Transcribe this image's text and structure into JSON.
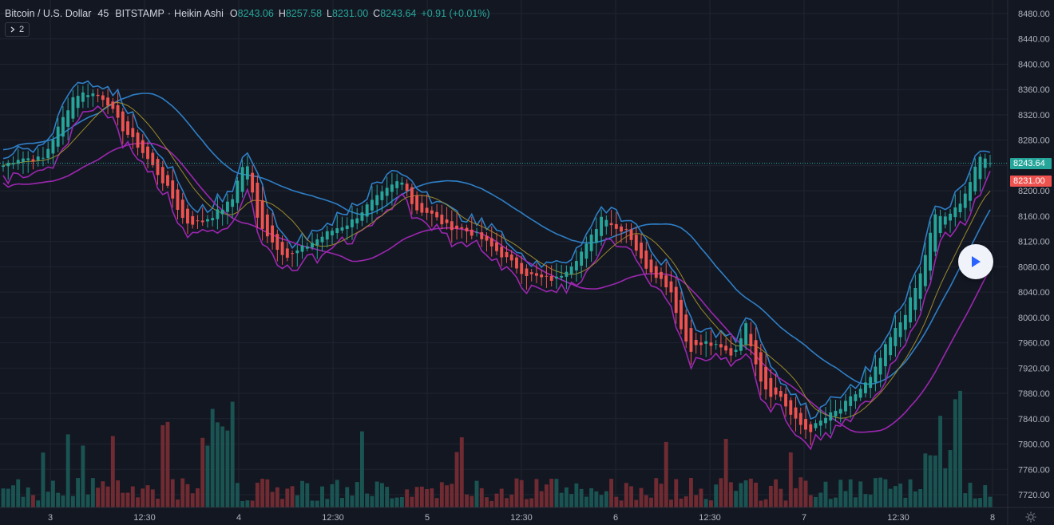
{
  "legend": {
    "symbol": "Bitcoin / U.S. Dollar",
    "interval": "45",
    "exchange": "BITSTAMP",
    "chart_style": "Heikin Ashi",
    "open_label": "O",
    "open_value": "8243.06",
    "high_label": "H",
    "high_value": "8257.58",
    "low_label": "L",
    "low_value": "8231.00",
    "close_label": "C",
    "close_value": "8243.64",
    "change": "+0.91 (+0.01%)"
  },
  "indicators_toggle": {
    "count": "2",
    "icon": "chevron-right-icon"
  },
  "price_axis": {
    "labels": [
      "8480.00",
      "8440.00",
      "8400.00",
      "8360.00",
      "8320.00",
      "8280.00",
      "8240.00",
      "8200.00",
      "8160.00",
      "8120.00",
      "8080.00",
      "8040.00",
      "8000.00",
      "7960.00",
      "7920.00",
      "7880.00",
      "7840.00",
      "7800.00",
      "7760.00",
      "7720.00"
    ]
  },
  "price_tags": {
    "last": "8243.64",
    "low": "8231.00"
  },
  "time_axis": {
    "labels": [
      "3",
      "12:30",
      "4",
      "12:30",
      "5",
      "12:30",
      "6",
      "12:30",
      "7",
      "12:30",
      "8"
    ]
  },
  "play_button": {
    "icon": "play-icon"
  },
  "settings": {
    "icon": "gear-icon"
  },
  "colors": {
    "background": "#131722",
    "grid": "#1f2430",
    "up": "#26a69a",
    "down": "#ef5350",
    "upper_band": "#2e7fc6",
    "lower_band": "#9c27b0",
    "middle_line": "#9c8a2a",
    "price_line": "#26a69a"
  },
  "chart_data": {
    "type": "candlestick",
    "y_range": [
      7700,
      8490
    ],
    "bars": 199,
    "x_ticks": [
      "3",
      "12:30",
      "4",
      "12:30",
      "5",
      "12:30",
      "6",
      "12:30",
      "7",
      "12:30",
      "8"
    ],
    "last_price": 8243.64,
    "key_closes": [
      {
        "x": "3",
        "close": 8275
      },
      {
        "x": "12:30",
        "close": 8250
      },
      {
        "x": "4",
        "close": 8190
      },
      {
        "x": "12:30",
        "close": 8125
      },
      {
        "x": "5",
        "close": 8195
      },
      {
        "x": "12:30",
        "close": 8075
      },
      {
        "x": "6",
        "close": 8145
      },
      {
        "x": "12:30",
        "close": 7955
      },
      {
        "x": "7",
        "close": 7870
      },
      {
        "x": "12:30",
        "close": 8165
      },
      {
        "x": "8",
        "close": 8243.64
      }
    ]
  }
}
